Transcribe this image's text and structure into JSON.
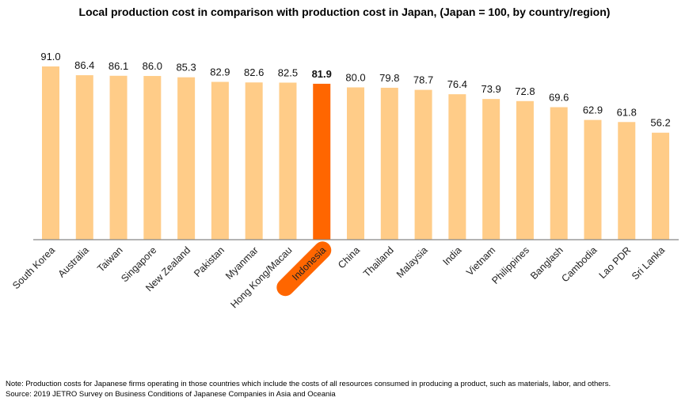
{
  "chart_data": {
    "type": "bar",
    "title": "Local production cost in comparison with production cost in Japan, (Japan = 100, by country/region)",
    "categories": [
      "South Korea",
      "Australia",
      "Taiwan",
      "Singapore",
      "New Zealand",
      "Pakistan",
      "Myanmar",
      "Hong Kong/Macau",
      "Indonesia",
      "China",
      "Thailand",
      "Malaysia",
      "India",
      "Vietnam",
      "Philippines",
      "Banglash",
      "Cambodia",
      "Lao PDR",
      "Sri Lanka"
    ],
    "values": [
      91.0,
      86.4,
      86.1,
      86.0,
      85.3,
      82.9,
      82.6,
      82.5,
      81.9,
      80.0,
      79.8,
      78.7,
      76.4,
      73.9,
      72.8,
      69.6,
      62.9,
      61.8,
      56.2
    ],
    "highlight": "Indonesia",
    "ylim": [
      0,
      100
    ],
    "grid": false,
    "colors": {
      "bar": "#FFCC88",
      "highlight": "#FF6600"
    }
  },
  "notes": {
    "note": "Note: Production costs for Japanese firms operating in those countries which include the costs of all resources consumed in producing a product, such as materials, labor, and others.",
    "source": "Source: 2019 JETRO Survey on Business Conditions of Japanese Companies in Asia and Oceania"
  }
}
